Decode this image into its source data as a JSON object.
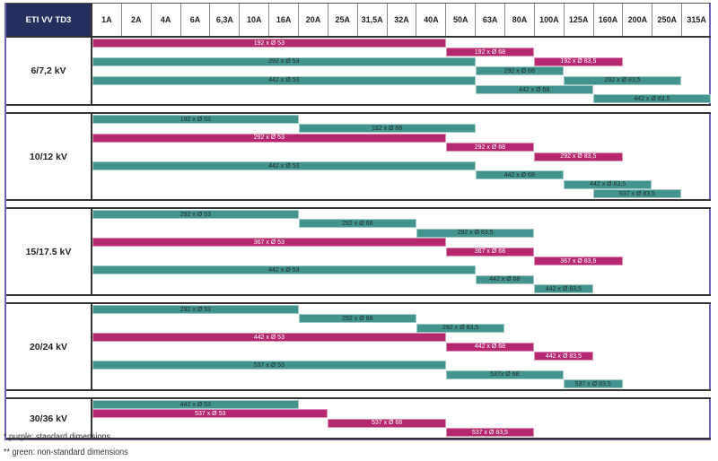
{
  "chart_data": {
    "type": "bar",
    "subtype": "range-table",
    "title": "ETI VV TD3",
    "categories": [
      "1A",
      "2A",
      "4A",
      "6A",
      "6,3A",
      "10A",
      "16A",
      "20A",
      "25A",
      "31,5A",
      "32A",
      "40A",
      "50A",
      "63A",
      "80A",
      "100A",
      "125A",
      "160A",
      "200A",
      "250A",
      "315A"
    ],
    "colors": {
      "purple": "#b5286f",
      "green": "#43948f"
    },
    "sections": [
      {
        "voltage": "6/7,2 kV",
        "rows": [
          [
            {
              "label": "192 x Ø 53",
              "color": "purple",
              "from": "1A",
              "to": "40A"
            }
          ],
          [
            {
              "label": "192 x Ø 68",
              "color": "purple",
              "from": "50A",
              "to": "80A"
            }
          ],
          [
            {
              "label": "292 x Ø 53",
              "color": "green",
              "from": "1A",
              "to": "50A"
            },
            {
              "label": "192 x Ø 83,5",
              "color": "purple",
              "from": "100A",
              "to": "160A"
            }
          ],
          [
            {
              "label": "292 x Ø 68",
              "color": "green",
              "from": "63A",
              "to": "100A"
            }
          ],
          [
            {
              "label": "442 x Ø 53",
              "color": "green",
              "from": "1A",
              "to": "50A"
            },
            {
              "label": "292 x Ø 83,5",
              "color": "green",
              "from": "125A",
              "to": "250A"
            }
          ],
          [
            {
              "label": "442 x Ø 68",
              "color": "green",
              "from": "63A",
              "to": "125A"
            }
          ],
          [
            {
              "label": "442 x Ø 83,5",
              "color": "green",
              "from": "160A",
              "to": "315A"
            }
          ]
        ]
      },
      {
        "voltage": "10/12 kV",
        "rows": [
          [
            {
              "label": "192 x Ø 53",
              "color": "green",
              "from": "1A",
              "to": "16A"
            }
          ],
          [
            {
              "label": "192 x Ø 68",
              "color": "green",
              "from": "20A",
              "to": "50A"
            }
          ],
          [
            {
              "label": "292 x Ø 53",
              "color": "purple",
              "from": "1A",
              "to": "40A"
            }
          ],
          [
            {
              "label": "292 x Ø 68",
              "color": "purple",
              "from": "50A",
              "to": "80A"
            }
          ],
          [
            {
              "label": "292 x Ø 83,5",
              "color": "purple",
              "from": "100A",
              "to": "160A"
            }
          ],
          [
            {
              "label": "442 x Ø 53",
              "color": "green",
              "from": "1A",
              "to": "50A"
            }
          ],
          [
            {
              "label": "442 x Ø 68",
              "color": "green",
              "from": "63A",
              "to": "100A"
            }
          ],
          [
            {
              "label": "442 x Ø 83,5",
              "color": "green",
              "from": "125A",
              "to": "200A"
            }
          ],
          [
            {
              "label": "537 x Ø 83,5",
              "color": "green",
              "from": "160A",
              "to": "250A"
            }
          ]
        ]
      },
      {
        "voltage": "15/17.5 kV",
        "rows": [
          [
            {
              "label": "292 x Ø 53",
              "color": "green",
              "from": "1A",
              "to": "16A"
            }
          ],
          [
            {
              "label": "292 x Ø 68",
              "color": "green",
              "from": "20A",
              "to": "32A"
            }
          ],
          [
            {
              "label": "292 x Ø 83,5",
              "color": "green",
              "from": "40A",
              "to": "80A"
            }
          ],
          [
            {
              "label": "367 x Ø 53",
              "color": "purple",
              "from": "1A",
              "to": "40A"
            }
          ],
          [
            {
              "label": "367 x Ø 68",
              "color": "purple",
              "from": "50A",
              "to": "80A"
            }
          ],
          [
            {
              "label": "367 x Ø 83,5",
              "color": "purple",
              "from": "100A",
              "to": "160A"
            }
          ],
          [
            {
              "label": "442 x Ø 53",
              "color": "green",
              "from": "1A",
              "to": "50A"
            }
          ],
          [
            {
              "label": "442 x Ø 68",
              "color": "green",
              "from": "63A",
              "to": "80A"
            }
          ],
          [
            {
              "label": "442 x Ø 83,5",
              "color": "green",
              "from": "100A",
              "to": "125A"
            }
          ]
        ]
      },
      {
        "voltage": "20/24 kV",
        "rows": [
          [
            {
              "label": "292 x Ø 53",
              "color": "green",
              "from": "1A",
              "to": "16A"
            }
          ],
          [
            {
              "label": "292 x Ø 68",
              "color": "green",
              "from": "20A",
              "to": "32A"
            }
          ],
          [
            {
              "label": "292 x Ø 83,5",
              "color": "green",
              "from": "40A",
              "to": "63A"
            }
          ],
          [
            {
              "label": "442 x Ø 53",
              "color": "purple",
              "from": "1A",
              "to": "40A"
            }
          ],
          [
            {
              "label": "442 x Ø 68",
              "color": "purple",
              "from": "50A",
              "to": "80A"
            }
          ],
          [
            {
              "label": "442 x Ø 83,5",
              "color": "purple",
              "from": "100A",
              "to": "125A"
            }
          ],
          [
            {
              "label": "537 x Ø 53",
              "color": "green",
              "from": "1A",
              "to": "40A"
            }
          ],
          [
            {
              "label": "537x Ø 68",
              "color": "green",
              "from": "50A",
              "to": "100A"
            }
          ],
          [
            {
              "label": "537 x Ø 83,5",
              "color": "green",
              "from": "125A",
              "to": "160A"
            }
          ]
        ]
      },
      {
        "voltage": "30/36 kV",
        "rows": [
          [
            {
              "label": "442 x Ø 53",
              "color": "green",
              "from": "1A",
              "to": "16A"
            }
          ],
          [
            {
              "label": "537 x Ø 53",
              "color": "purple",
              "from": "1A",
              "to": "20A"
            }
          ],
          [
            {
              "label": "537 x Ø 68",
              "color": "purple",
              "from": "25A",
              "to": "40A"
            }
          ],
          [
            {
              "label": "537 x Ø 83,5",
              "color": "purple",
              "from": "50A",
              "to": "80A"
            }
          ]
        ]
      }
    ]
  },
  "legend": {
    "purple": "*   purple: standard dimensions",
    "green": "** green: non-standard dimensions"
  }
}
